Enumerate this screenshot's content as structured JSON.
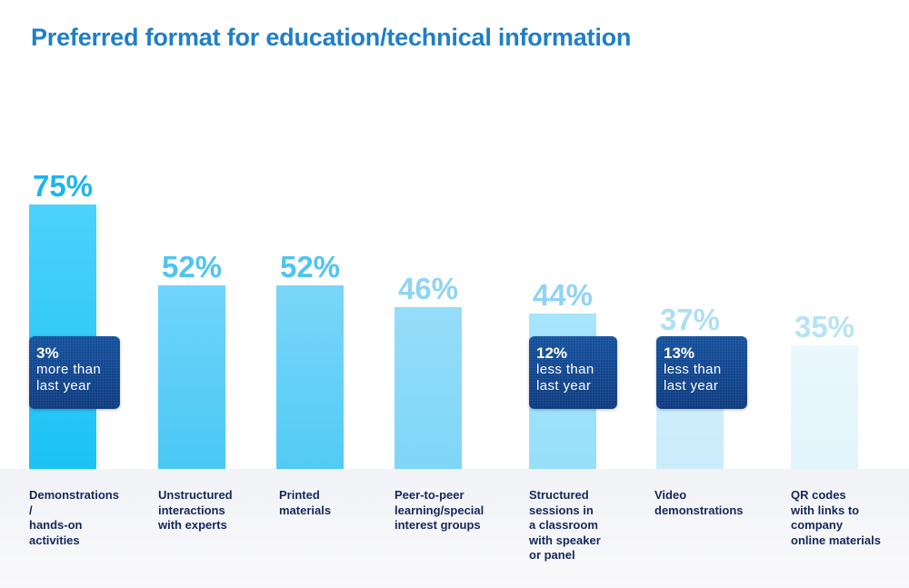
{
  "chart_data": {
    "type": "bar",
    "title": "Preferred format for education/technical information",
    "xlabel": "",
    "ylabel": "",
    "ylim": [
      0,
      100
    ],
    "categories": [
      "Demonstrations / hands-on activities",
      "Unstructured interactions with experts",
      "Printed materials",
      "Peer-to-peer learning/special interest groups",
      "Structured sessions in a classroom with speaker or panel",
      "Video demonstrations",
      "QR codes with links to company online materials"
    ],
    "category_lines": [
      [
        "Demonstrations",
        "/",
        "hands-on",
        "activities"
      ],
      [
        "Unstructured",
        "interactions",
        "with experts"
      ],
      [
        "Printed",
        "materials"
      ],
      [
        "Peer-to-peer",
        "learning/special",
        "interest groups"
      ],
      [
        "Structured",
        "sessions in",
        "a classroom",
        "with speaker",
        "or panel"
      ],
      [
        "Video",
        "demonstrations"
      ],
      [
        "QR codes",
        "with links to",
        "company",
        "online materials"
      ]
    ],
    "values": [
      75,
      52,
      52,
      46,
      44,
      37,
      35
    ],
    "value_labels": [
      "75%",
      "52%",
      "52%",
      "46%",
      "44%",
      "37%",
      "35%"
    ],
    "annotations": [
      {
        "category_index": 0,
        "value": "3%",
        "lines": [
          "more than",
          "last year"
        ]
      },
      {
        "category_index": 4,
        "value": "12%",
        "lines": [
          "less than",
          "last year"
        ]
      },
      {
        "category_index": 5,
        "value": "13%",
        "lines": [
          "less than",
          "last year"
        ]
      }
    ]
  },
  "colors": {
    "bar_tops": [
      "#4cd2fb",
      "#6fd4fa",
      "#7ad6f9",
      "#95ddfa",
      "#a7e5fb",
      "#d3f0fc",
      "#eaf7fd"
    ],
    "bar_bottoms": [
      "#1cc2f5",
      "#4ac8f5",
      "#52cbf5",
      "#7fd6f8",
      "#97dff9",
      "#c9ecfb",
      "#e2f4fc"
    ],
    "value_text": [
      "#1ab6ee",
      "#4fc4f0",
      "#4fc4f0",
      "#8fd4f3",
      "#8fd4f3",
      "#aedff4",
      "#b7e3f5"
    ]
  }
}
